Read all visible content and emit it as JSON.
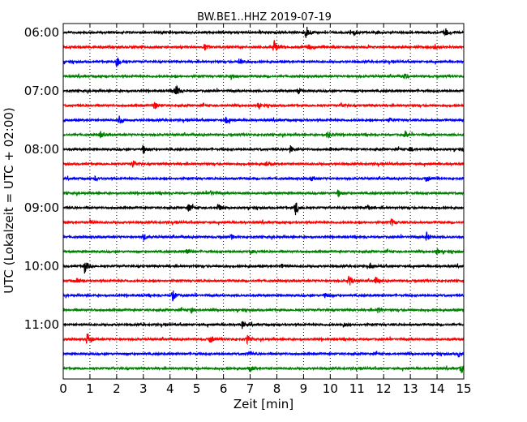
{
  "chart_data": {
    "type": "line",
    "title": "BW.BE1..HHZ 2019-07-19",
    "xlabel": "Zeit  [min]",
    "ylabel": "UTC (Lokalzeit = UTC + 02:00)",
    "xlim": [
      0,
      15
    ],
    "x_ticks": [
      "0",
      "1",
      "2",
      "3",
      "4",
      "5",
      "6",
      "7",
      "8",
      "9",
      "10",
      "11",
      "12",
      "13",
      "14",
      "15"
    ],
    "y_ticks": [
      "06:00",
      "07:00",
      "08:00",
      "09:00",
      "10:00",
      "11:00"
    ],
    "grid": "vertical dotted",
    "trace_interval_min": 15,
    "colors": [
      "#000000",
      "#ff0000",
      "#0000ff",
      "#008000"
    ],
    "traces": [
      {
        "start": "06:00",
        "color": "#000000",
        "events": [
          [
            9.1,
            1.0
          ],
          [
            14.3,
            0.6
          ],
          [
            10.9,
            0.3
          ]
        ]
      },
      {
        "start": "06:15",
        "color": "#ff0000",
        "events": [
          [
            7.9,
            1.0
          ],
          [
            5.3,
            0.4
          ],
          [
            9.2,
            0.3
          ],
          [
            13.9,
            0.4
          ]
        ]
      },
      {
        "start": "06:30",
        "color": "#0000ff",
        "events": [
          [
            2.0,
            0.9
          ],
          [
            6.6,
            0.4
          ]
        ]
      },
      {
        "start": "06:45",
        "color": "#008000",
        "events": [
          [
            6.3,
            0.4
          ],
          [
            12.8,
            0.3
          ]
        ]
      },
      {
        "start": "07:00",
        "color": "#000000",
        "events": [
          [
            4.2,
            1.0
          ],
          [
            8.8,
            0.4
          ]
        ]
      },
      {
        "start": "07:15",
        "color": "#ff0000",
        "events": [
          [
            3.4,
            0.6
          ],
          [
            7.3,
            0.3
          ],
          [
            10.4,
            0.3
          ]
        ]
      },
      {
        "start": "07:30",
        "color": "#0000ff",
        "events": [
          [
            2.1,
            0.7
          ],
          [
            6.1,
            0.4
          ],
          [
            12.2,
            0.3
          ]
        ]
      },
      {
        "start": "07:45",
        "color": "#008000",
        "events": [
          [
            1.4,
            0.4
          ],
          [
            9.9,
            0.5
          ],
          [
            12.8,
            0.4
          ]
        ]
      },
      {
        "start": "08:00",
        "color": "#000000",
        "events": [
          [
            3.0,
            0.6
          ],
          [
            8.5,
            0.5
          ],
          [
            13.0,
            0.3
          ]
        ]
      },
      {
        "start": "08:15",
        "color": "#ff0000",
        "events": [
          [
            2.6,
            0.6
          ],
          [
            7.6,
            0.3
          ]
        ]
      },
      {
        "start": "08:30",
        "color": "#0000ff",
        "events": [
          [
            1.2,
            0.3
          ],
          [
            9.3,
            0.3
          ],
          [
            13.6,
            0.4
          ]
        ]
      },
      {
        "start": "08:45",
        "color": "#008000",
        "events": [
          [
            10.3,
            0.5
          ],
          [
            5.5,
            0.3
          ]
        ]
      },
      {
        "start": "09:00",
        "color": "#000000",
        "events": [
          [
            8.7,
            1.0
          ],
          [
            4.7,
            0.6
          ],
          [
            5.8,
            0.6
          ],
          [
            11.4,
            0.4
          ]
        ]
      },
      {
        "start": "09:15",
        "color": "#ff0000",
        "events": [
          [
            12.3,
            0.5
          ],
          [
            1.0,
            0.3
          ]
        ]
      },
      {
        "start": "09:30",
        "color": "#0000ff",
        "events": [
          [
            3.0,
            0.5
          ],
          [
            6.3,
            0.3
          ],
          [
            13.6,
            0.6
          ]
        ]
      },
      {
        "start": "09:45",
        "color": "#008000",
        "events": [
          [
            4.6,
            0.6
          ],
          [
            7.0,
            0.3
          ],
          [
            14.0,
            0.3
          ]
        ]
      },
      {
        "start": "10:00",
        "color": "#000000",
        "events": [
          [
            0.8,
            0.9
          ],
          [
            8.2,
            0.3
          ],
          [
            11.5,
            0.4
          ]
        ]
      },
      {
        "start": "10:15",
        "color": "#ff0000",
        "events": [
          [
            10.7,
            0.8
          ],
          [
            11.7,
            0.5
          ],
          [
            0.5,
            0.4
          ]
        ]
      },
      {
        "start": "10:30",
        "color": "#0000ff",
        "events": [
          [
            4.1,
            0.7
          ],
          [
            9.8,
            0.3
          ]
        ]
      },
      {
        "start": "10:45",
        "color": "#008000",
        "events": [
          [
            11.8,
            0.4
          ],
          [
            4.8,
            0.3
          ]
        ]
      },
      {
        "start": "11:00",
        "color": "#000000",
        "events": [
          [
            6.7,
            0.5
          ],
          [
            10.5,
            0.3
          ]
        ]
      },
      {
        "start": "11:15",
        "color": "#ff0000",
        "events": [
          [
            0.9,
            1.0
          ],
          [
            5.5,
            0.5
          ],
          [
            6.9,
            0.5
          ]
        ]
      },
      {
        "start": "11:30",
        "color": "#0000ff",
        "events": [
          [
            6.9,
            0.3
          ],
          [
            14.8,
            0.4
          ]
        ]
      },
      {
        "start": "11:45",
        "color": "#008000",
        "events": [
          [
            7.0,
            0.4
          ],
          [
            14.9,
            0.6
          ]
        ]
      }
    ]
  }
}
